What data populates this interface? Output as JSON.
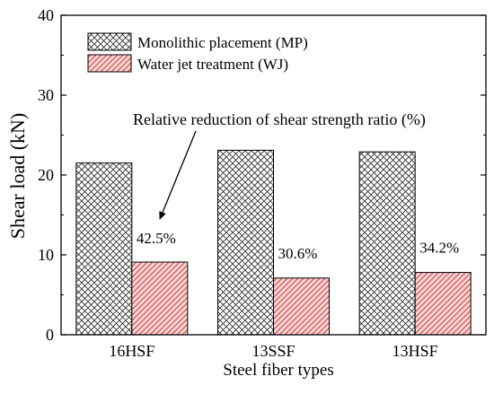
{
  "chart_data": {
    "type": "bar",
    "categories": [
      "16HSF",
      "13SSF",
      "13HSF"
    ],
    "series": [
      {
        "name": "Monolithic placement (MP)",
        "values": [
          21.5,
          23.1,
          22.9
        ],
        "color": "#ffffff",
        "pattern": "crosshatch"
      },
      {
        "name": "Water jet treatment (WJ)",
        "values": [
          9.1,
          7.1,
          7.8
        ],
        "color": "#f4c8c8",
        "pattern": "diagonal-red"
      }
    ],
    "data_labels": [
      "42.5%",
      "30.6%",
      "34.2%"
    ],
    "annotation": "Relative reduction of shear strength ratio (%)",
    "xlabel": "Steel fiber types",
    "ylabel": "Shear load (kN)",
    "ylim": [
      0,
      40
    ],
    "yticks": [
      0,
      10,
      20,
      30,
      40
    ],
    "legend_position": "top-left",
    "grid": false
  }
}
